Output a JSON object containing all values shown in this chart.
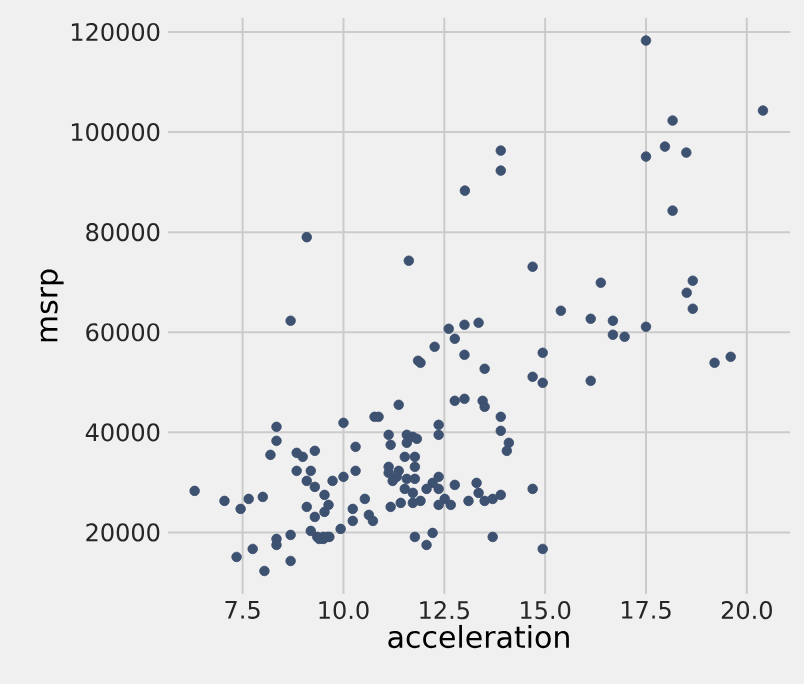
{
  "chart_data": {
    "type": "scatter",
    "xlabel": "acceleration",
    "ylabel": "msrp",
    "color": "#3d5170",
    "grid": true,
    "xlim": [
      5.65,
      21.07
    ],
    "ylim": [
      7700,
      122800
    ],
    "xticks": [
      {
        "value": 7.5,
        "label": "7.5"
      },
      {
        "value": 10.0,
        "label": "10.0"
      },
      {
        "value": 12.5,
        "label": "12.5"
      },
      {
        "value": 15.0,
        "label": "15.0"
      },
      {
        "value": 17.5,
        "label": "17.5"
      },
      {
        "value": 20.0,
        "label": "20.0"
      }
    ],
    "yticks": [
      20000,
      40000,
      60000,
      80000,
      100000,
      120000
    ],
    "x": [
      9.09,
      13.9,
      13.9,
      13.01,
      11.62,
      14.69,
      17.5,
      20.4,
      18.16,
      17.97,
      17.5,
      18.5,
      18.16,
      16.38,
      18.66,
      18.51,
      18.66,
      16.13,
      16.68,
      16.68,
      16.97,
      17.5,
      19.2,
      19.6,
      16.13,
      15.39,
      12.61,
      13.0,
      13.35,
      12.76,
      12.26,
      14.94,
      13.0,
      11.85,
      11.91,
      13.5,
      14.69,
      14.94,
      12.76,
      13.0,
      13.45,
      13.5,
      13.9,
      11.37,
      12.36,
      12.36,
      13.9,
      14.1,
      14.05,
      11.12,
      11.57,
      11.72,
      11.82,
      11.17,
      11.57,
      11.77,
      11.52,
      11.37,
      11.77,
      11.12,
      11.12,
      11.32,
      11.57,
      11.77,
      11.22,
      12.36,
      12.21,
      12.06,
      12.76,
      13.3,
      12.36,
      11.52,
      11.72,
      11.91,
      12.51,
      13.35,
      13.1,
      13.5,
      13.7,
      13.9,
      14.69,
      12.36,
      12.66,
      11.17,
      11.42,
      11.72,
      10.63,
      10.73,
      11.77,
      12.06,
      12.21,
      13.7,
      14.94,
      8.69,
      6.31,
      7.05,
      7.45,
      7.65,
      8.0,
      8.34,
      8.34,
      8.19,
      8.84,
      8.99,
      9.29,
      8.84,
      9.19,
      9.09,
      9.29,
      9.73,
      9.53,
      10.0,
      10.0,
      10.3,
      10.3,
      10.77,
      10.87,
      10.53,
      9.09,
      9.63,
      9.29,
      9.53,
      10.23,
      10.23,
      9.93,
      9.19,
      9.35,
      9.5,
      9.65,
      9.4,
      9.5,
      9.6,
      8.69,
      8.34,
      8.34,
      7.75,
      7.35,
      8.04,
      8.69
    ],
    "values": [
      79000,
      96300,
      92300,
      88300,
      74300,
      73100,
      118300,
      104300,
      102300,
      97100,
      95100,
      95900,
      84300,
      69900,
      70300,
      67900,
      64700,
      62700,
      62300,
      59500,
      59100,
      61100,
      53900,
      55100,
      50300,
      64300,
      60700,
      61500,
      61900,
      58700,
      57100,
      55900,
      55500,
      54300,
      53900,
      52700,
      51100,
      49900,
      46300,
      46700,
      46300,
      45100,
      43100,
      45500,
      41500,
      39500,
      40300,
      37900,
      36300,
      39500,
      39500,
      39100,
      38700,
      37500,
      37900,
      35100,
      35100,
      32300,
      33100,
      33100,
      31900,
      31100,
      30700,
      30700,
      30300,
      31100,
      29900,
      28700,
      29500,
      29900,
      28700,
      28700,
      27900,
      26300,
      26700,
      27900,
      26300,
      26300,
      26700,
      27500,
      28700,
      25500,
      25500,
      25100,
      25900,
      25900,
      23500,
      22300,
      19100,
      17500,
      19900,
      19100,
      16700,
      62300,
      28300,
      26300,
      24700,
      26700,
      27100,
      41100,
      38300,
      35500,
      35900,
      35100,
      36300,
      32300,
      32300,
      30300,
      29100,
      30300,
      27500,
      41900,
      31100,
      37100,
      32300,
      43100,
      43100,
      26700,
      25100,
      25500,
      23100,
      24100,
      24700,
      22300,
      20700,
      20300,
      19100,
      19100,
      19100,
      18700,
      18700,
      19100,
      19500,
      18700,
      17500,
      16700,
      15100,
      12300,
      14300
    ]
  }
}
